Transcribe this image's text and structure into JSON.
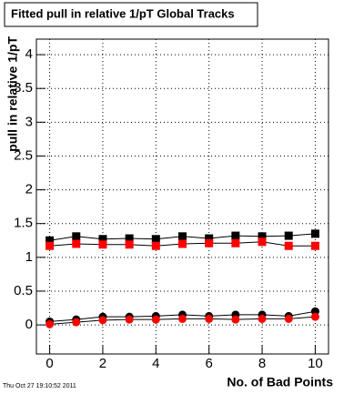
{
  "chart_data": {
    "type": "scatter",
    "title": "Fitted pull in relative 1/pT  Global Tracks",
    "x_label": "No. of Bad Points",
    "y_label": "pull in relative 1/pT",
    "timestamp": "Thu Oct 27 19:10:52 2011",
    "x": [
      0,
      1,
      2,
      3,
      4,
      5,
      6,
      7,
      8,
      9,
      10
    ],
    "series": [
      {
        "color": "#000000",
        "marker": "square",
        "values": [
          1.25,
          1.31,
          1.27,
          1.28,
          1.27,
          1.31,
          1.28,
          1.32,
          1.31,
          1.32,
          1.35
        ]
      },
      {
        "color": "#ff0000",
        "marker": "square",
        "values": [
          1.17,
          1.2,
          1.19,
          1.19,
          1.17,
          1.2,
          1.21,
          1.21,
          1.23,
          1.17,
          1.17
        ]
      },
      {
        "color": "#000000",
        "marker": "circle",
        "values": [
          0.05,
          0.08,
          0.12,
          0.12,
          0.13,
          0.15,
          0.13,
          0.15,
          0.15,
          0.13,
          0.2
        ]
      },
      {
        "color": "#ff0000",
        "marker": "circle",
        "values": [
          0.01,
          0.04,
          0.07,
          0.08,
          0.08,
          0.09,
          0.09,
          0.08,
          0.09,
          0.09,
          0.12
        ]
      }
    ],
    "xlim": [
      -0.5,
      10.5
    ],
    "xticks": [
      0,
      2,
      4,
      6,
      8,
      10
    ],
    "ylim": [
      -0.43,
      4.23
    ],
    "yticks": [
      0,
      0.5,
      1,
      1.5,
      2,
      2.5,
      3,
      3.5,
      4
    ],
    "grid": true
  }
}
